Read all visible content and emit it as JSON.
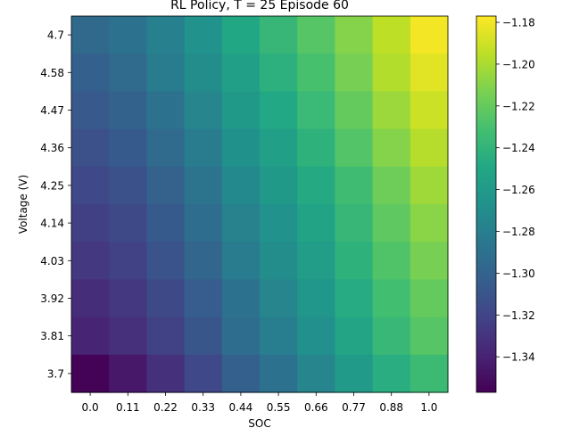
{
  "chart_data": {
    "type": "heatmap",
    "title": "RL Policy, T = 25 Episode 60",
    "xlabel": "SOC",
    "ylabel": "Voltage (V)",
    "x_tick_labels": [
      "0.0",
      "0.11",
      "0.22",
      "0.33",
      "0.44",
      "0.55",
      "0.66",
      "0.77",
      "0.88",
      "1.0"
    ],
    "y_tick_labels": [
      "4.7",
      "4.58",
      "4.47",
      "4.36",
      "4.25",
      "4.14",
      "4.03",
      "3.92",
      "3.81",
      "3.7"
    ],
    "values": [
      [
        -1.296,
        -1.289,
        -1.279,
        -1.266,
        -1.25,
        -1.238,
        -1.225,
        -1.21,
        -1.195,
        -1.18
      ],
      [
        -1.302,
        -1.294,
        -1.283,
        -1.27,
        -1.255,
        -1.243,
        -1.23,
        -1.214,
        -1.198,
        -1.185
      ],
      [
        -1.307,
        -1.3,
        -1.289,
        -1.276,
        -1.261,
        -1.249,
        -1.236,
        -1.22,
        -1.204,
        -1.191
      ],
      [
        -1.313,
        -1.306,
        -1.295,
        -1.282,
        -1.267,
        -1.255,
        -1.242,
        -1.226,
        -1.21,
        -1.197
      ],
      [
        -1.318,
        -1.312,
        -1.301,
        -1.288,
        -1.273,
        -1.261,
        -1.248,
        -1.233,
        -1.217,
        -1.203
      ],
      [
        -1.323,
        -1.317,
        -1.306,
        -1.293,
        -1.278,
        -1.266,
        -1.253,
        -1.238,
        -1.222,
        -1.209
      ],
      [
        -1.328,
        -1.322,
        -1.311,
        -1.298,
        -1.283,
        -1.27,
        -1.257,
        -1.242,
        -1.227,
        -1.214
      ],
      [
        -1.334,
        -1.328,
        -1.317,
        -1.304,
        -1.289,
        -1.276,
        -1.263,
        -1.247,
        -1.232,
        -1.22
      ],
      [
        -1.339,
        -1.333,
        -1.322,
        -1.309,
        -1.293,
        -1.281,
        -1.268,
        -1.252,
        -1.237,
        -1.225
      ],
      [
        -1.356,
        -1.345,
        -1.332,
        -1.318,
        -1.302,
        -1.289,
        -1.276,
        -1.26,
        -1.245,
        -1.235
      ]
    ],
    "colorbar": {
      "range": [
        -1.357,
        -1.177
      ],
      "tick_values": [
        -1.34,
        -1.32,
        -1.3,
        -1.28,
        -1.26,
        -1.24,
        -1.22,
        -1.2,
        -1.18
      ],
      "tick_labels": [
        "−1.34",
        "−1.32",
        "−1.30",
        "−1.28",
        "−1.26",
        "−1.24",
        "−1.22",
        "−1.20",
        "−1.18"
      ]
    },
    "colormap": "viridis",
    "grid": false
  }
}
